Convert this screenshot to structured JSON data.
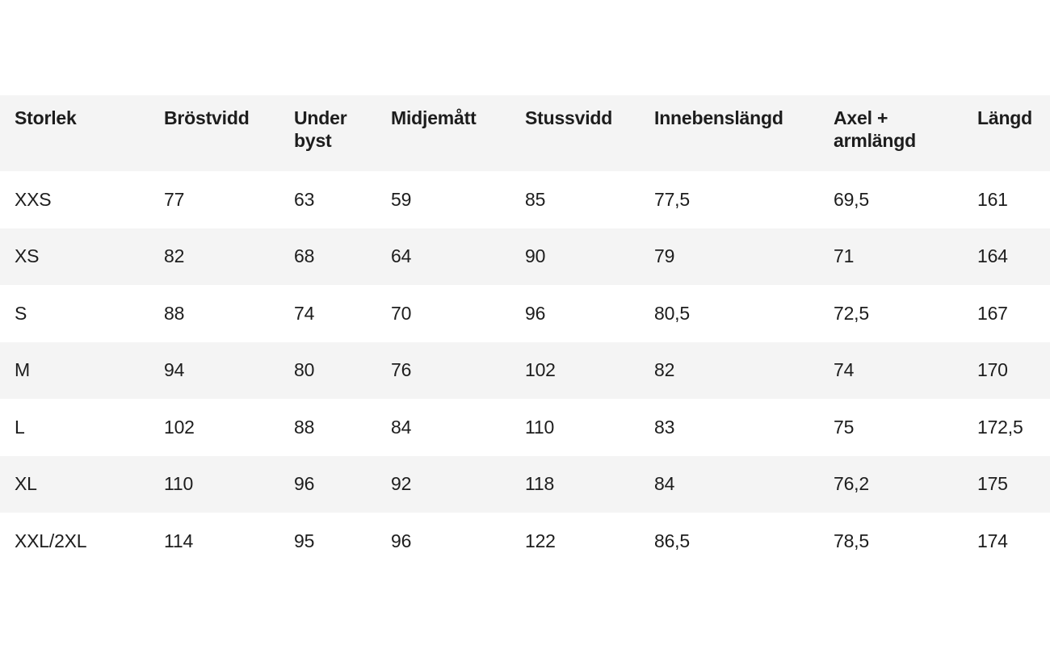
{
  "colors": {
    "background": "#ffffff",
    "stripe": "#f4f4f4",
    "text": "#1d1d1d"
  },
  "table": {
    "columns": [
      "Storlek",
      "Bröstvidd",
      "Under byst",
      "Midjemått",
      "Stussvidd",
      "Innebenslängd",
      "Axel + armlängd",
      "Längd"
    ],
    "rows": [
      [
        "XXS",
        "77",
        "63",
        "59",
        "85",
        "77,5",
        "69,5",
        "161"
      ],
      [
        "XS",
        "82",
        "68",
        "64",
        "90",
        "79",
        "71",
        "164"
      ],
      [
        "S",
        "88",
        "74",
        "70",
        "96",
        "80,5",
        "72,5",
        "167"
      ],
      [
        "M",
        "94",
        "80",
        "76",
        "102",
        "82",
        "74",
        "170"
      ],
      [
        "L",
        "102",
        "88",
        "84",
        "110",
        "83",
        "75",
        "172,5"
      ],
      [
        "XL",
        "110",
        "96",
        "92",
        "118",
        "84",
        "76,2",
        "175"
      ],
      [
        "XXL/2XL",
        "114",
        "95",
        "96",
        "122",
        "86,5",
        "78,5",
        "174"
      ]
    ]
  },
  "chart_data": {
    "type": "table",
    "columns": [
      "Storlek",
      "Bröstvidd",
      "Under byst",
      "Midjemått",
      "Stussvidd",
      "Innebenslängd",
      "Axel + armlängd",
      "Längd"
    ],
    "rows": [
      {
        "Storlek": "XXS",
        "Bröstvidd": 77,
        "Under byst": 63,
        "Midjemått": 59,
        "Stussvidd": 85,
        "Innebenslängd": 77.5,
        "Axel + armlängd": 69.5,
        "Längd": 161
      },
      {
        "Storlek": "XS",
        "Bröstvidd": 82,
        "Under byst": 68,
        "Midjemått": 64,
        "Stussvidd": 90,
        "Innebenslängd": 79,
        "Axel + armlängd": 71,
        "Längd": 164
      },
      {
        "Storlek": "S",
        "Bröstvidd": 88,
        "Under byst": 74,
        "Midjemått": 70,
        "Stussvidd": 96,
        "Innebenslängd": 80.5,
        "Axel + armlängd": 72.5,
        "Längd": 167
      },
      {
        "Storlek": "M",
        "Bröstvidd": 94,
        "Under byst": 80,
        "Midjemått": 76,
        "Stussvidd": 102,
        "Innebenslängd": 82,
        "Axel + armlängd": 74,
        "Längd": 170
      },
      {
        "Storlek": "L",
        "Bröstvidd": 102,
        "Under byst": 88,
        "Midjemått": 84,
        "Stussvidd": 110,
        "Innebenslängd": 83,
        "Axel + armlängd": 75,
        "Längd": 172.5
      },
      {
        "Storlek": "XL",
        "Bröstvidd": 110,
        "Under byst": 96,
        "Midjemått": 92,
        "Stussvidd": 118,
        "Innebenslängd": 84,
        "Axel + armlängd": 76.2,
        "Längd": 175
      },
      {
        "Storlek": "XXL/2XL",
        "Bröstvidd": 114,
        "Under byst": 95,
        "Midjemått": 96,
        "Stussvidd": 122,
        "Innebenslängd": 86.5,
        "Axel + armlängd": 78.5,
        "Längd": 174
      }
    ],
    "decimal_separator": ",",
    "legend_position": "none",
    "grid": false
  }
}
